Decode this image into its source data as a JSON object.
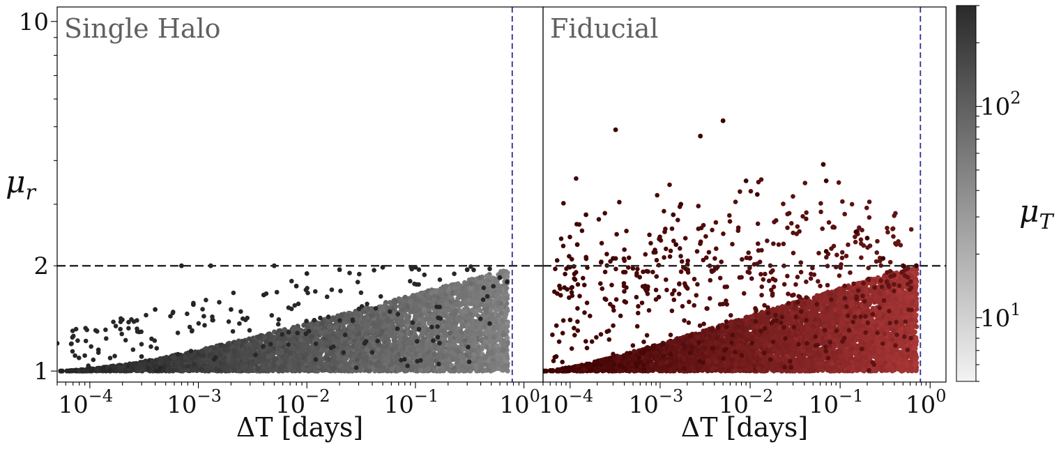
{
  "chart_data": [
    {
      "type": "scatter",
      "title": "Single Halo",
      "xlabel": "ΔT [days]",
      "ylabel": "μr",
      "xscale": "log",
      "yscale": "log",
      "xlim": [
        5e-05,
        1.5
      ],
      "ylim": [
        0.93,
        11
      ],
      "x_ticks": [
        {
          "base": "10",
          "exp": "−4",
          "value": 0.0001
        },
        {
          "base": "10",
          "exp": "−3",
          "value": 0.001
        },
        {
          "base": "10",
          "exp": "−2",
          "value": 0.01
        },
        {
          "base": "10",
          "exp": "−1",
          "value": 0.1
        },
        {
          "base": "10",
          "exp": "0",
          "value": 1
        }
      ],
      "y_ticks": [
        {
          "label": "1",
          "value": 1
        },
        {
          "label": "2",
          "value": 2
        },
        {
          "label": "10",
          "value": 10
        }
      ],
      "hline": {
        "y": 2,
        "style": "dashed",
        "color": "#2a2a2a"
      },
      "vline": {
        "x": 0.78,
        "style": "dashed",
        "color": "#2b2b9a"
      },
      "colormap": "grays",
      "point_color_range": [
        "#222222",
        "#8a8a8a"
      ],
      "series_description": "dense cloud of points from μr=1 up to ~2, widening with ΔT up to ~0.7 days",
      "sample_points": [
        [
          5e-05,
          1.2
        ],
        [
          0.00012,
          1.15
        ],
        [
          0.0003,
          1.1
        ],
        [
          0.0004,
          1.5
        ],
        [
          0.0007,
          2.0
        ],
        [
          0.0013,
          2.0
        ],
        [
          0.005,
          2.0
        ],
        [
          0.0009,
          1.55
        ],
        [
          0.002,
          1.5
        ],
        [
          0.004,
          1.65
        ],
        [
          0.008,
          1.75
        ],
        [
          0.01,
          1.9
        ],
        [
          0.02,
          1.95
        ],
        [
          0.05,
          1.98
        ],
        [
          0.1,
          1.98
        ],
        [
          0.3,
          1.95
        ],
        [
          0.6,
          1.85
        ],
        [
          0.7,
          1.8
        ]
      ]
    },
    {
      "type": "scatter",
      "title": "Fiducial",
      "xlabel": "ΔT [days]",
      "xscale": "log",
      "yscale": "log",
      "xlim": [
        5e-05,
        1.5
      ],
      "ylim": [
        0.93,
        11
      ],
      "x_ticks": [
        {
          "base": "10",
          "exp": "−4",
          "value": 0.0001
        },
        {
          "base": "10",
          "exp": "−3",
          "value": 0.001
        },
        {
          "base": "10",
          "exp": "−2",
          "value": 0.01
        },
        {
          "base": "10",
          "exp": "−1",
          "value": 0.1
        },
        {
          "base": "10",
          "exp": "0",
          "value": 1
        }
      ],
      "hline": {
        "y": 2,
        "style": "dashed",
        "color": "#2a2a2a"
      },
      "vline": {
        "x": 0.78,
        "style": "dashed",
        "color": "#2b2b9a"
      },
      "colormap": "reds",
      "point_color_range": [
        "#3a0000",
        "#b03a3a"
      ],
      "series_description": "dense cloud from μr=1 to ~2 plus scattered outliers up to ~5",
      "sample_points": [
        [
          0.00032,
          4.9
        ],
        [
          0.0028,
          4.7
        ],
        [
          0.005,
          5.2
        ],
        [
          0.065,
          3.9
        ],
        [
          0.07,
          3.5
        ],
        [
          0.009,
          3.5
        ],
        [
          0.0014,
          2.8
        ],
        [
          0.0017,
          3.0
        ],
        [
          0.012,
          3.2
        ],
        [
          0.00015,
          2.8
        ],
        [
          0.00012,
          2.3
        ],
        [
          0.0003,
          2.1
        ],
        [
          0.0015,
          2.3
        ],
        [
          0.15,
          2.5
        ],
        [
          0.2,
          2.4
        ],
        [
          0.07,
          2.2
        ],
        [
          0.3,
          2.1
        ],
        [
          0.5,
          2.0
        ],
        [
          0.7,
          2.0
        ],
        [
          0.0001,
          1.4
        ],
        [
          7e-05,
          1.1
        ]
      ]
    }
  ],
  "colorbar": {
    "label": "μT",
    "label_base": "μ",
    "label_sub": "T",
    "scale": "log",
    "range": [
      5,
      300
    ],
    "gradient": [
      "#f3f3f3",
      "#2a2a2a"
    ],
    "ticks": [
      {
        "base": "10",
        "exp": "1",
        "value": 10
      },
      {
        "base": "10",
        "exp": "2",
        "value": 100
      }
    ]
  }
}
